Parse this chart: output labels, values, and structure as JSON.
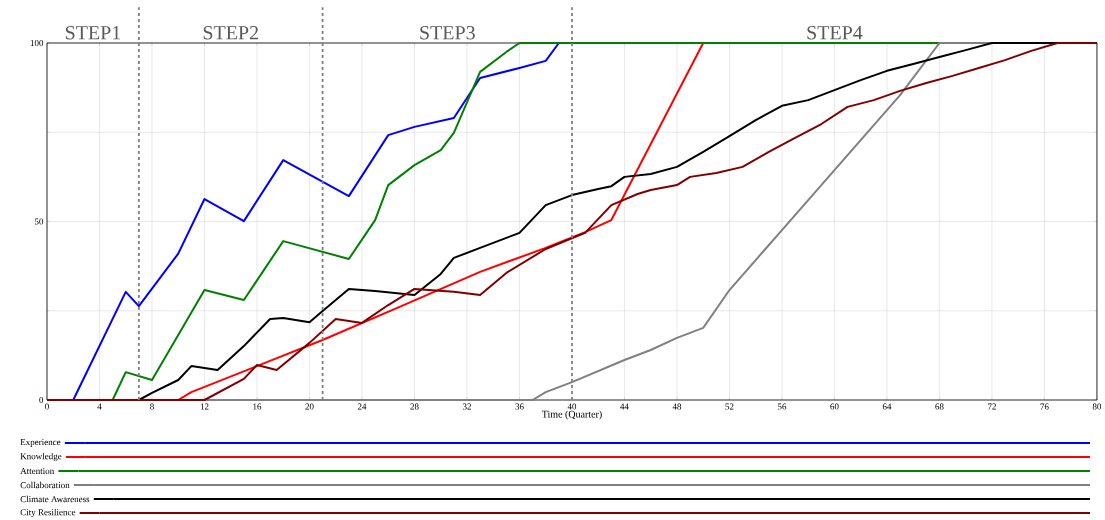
{
  "chart_data": {
    "type": "line",
    "xlabel": "Time (Quarter)",
    "xlim": [
      0,
      80
    ],
    "xticks": [
      0,
      4,
      8,
      12,
      16,
      20,
      24,
      28,
      32,
      36,
      40,
      44,
      48,
      52,
      56,
      60,
      64,
      68,
      72,
      76,
      80
    ],
    "ylim": [
      0,
      100
    ],
    "yticks": [
      0,
      {
        "value": 25,
        "label": null
      },
      50,
      {
        "value": 75,
        "label": null
      },
      100
    ],
    "grid": true,
    "legend": "bottom",
    "marker": "none",
    "line_style": "solid",
    "ref_lines": [
      {
        "axis": "x",
        "value": 7,
        "color": "#808080",
        "line_style": "dashed"
      },
      {
        "axis": "x",
        "value": 21,
        "color": "#808080",
        "line_style": "dashed"
      },
      {
        "axis": "x",
        "value": 40,
        "color": "#808080",
        "line_style": "dashed"
      }
    ],
    "annotations": [
      "STEP1",
      "STEP2",
      "STEP3",
      "STEP4"
    ],
    "series": [
      {
        "name": "Experience",
        "color": "#0000ff",
        "x": [
          0,
          2,
          6,
          7,
          10,
          12,
          15,
          18,
          23,
          26,
          28,
          31,
          33,
          36,
          38,
          39,
          80
        ],
        "values": [
          0,
          0,
          30.3,
          26.3,
          41,
          56.3,
          50.1,
          67.2,
          57.1,
          74.2,
          76.5,
          79,
          90.2,
          93,
          95,
          100,
          100
        ]
      },
      {
        "name": "Knowledge",
        "color": "#ff0000",
        "x": [
          0,
          10,
          11,
          21,
          27,
          33,
          38,
          41,
          43,
          50,
          80
        ],
        "values": [
          0,
          0,
          2.2,
          16.8,
          26.3,
          35.9,
          42.6,
          47,
          50.4,
          100,
          100
        ]
      },
      {
        "name": "Attention",
        "color": "#008000",
        "x": [
          0,
          5,
          6,
          8,
          12,
          15,
          18,
          23,
          25,
          26,
          28,
          30,
          31,
          33,
          35,
          36,
          80
        ],
        "values": [
          0,
          0,
          7.8,
          5.6,
          30.8,
          28,
          44.5,
          39.5,
          50.4,
          60.2,
          65.8,
          70,
          74.8,
          91.9,
          97.5,
          100,
          100
        ]
      },
      {
        "name": "Collaboration",
        "color": "#808080",
        "x": [
          0,
          37,
          38,
          40,
          44,
          46,
          48,
          50,
          52,
          56,
          58,
          62,
          65,
          68,
          80
        ],
        "values": [
          0,
          0,
          2.2,
          5,
          11.2,
          14,
          17.4,
          20.2,
          30.8,
          47.6,
          56,
          72.8,
          85.4,
          100,
          100
        ]
      },
      {
        "name": "Climate Awareness",
        "color": "#000000",
        "x": [
          0,
          7,
          8,
          10,
          11,
          13,
          15,
          17,
          18,
          20,
          21,
          23,
          25,
          28,
          30,
          31,
          33,
          36,
          38,
          40,
          42,
          43,
          44,
          46,
          48,
          50,
          52,
          54,
          56,
          58,
          60,
          62,
          64,
          66,
          68,
          70,
          72,
          80
        ],
        "values": [
          0,
          0,
          2,
          5.6,
          9.5,
          8.4,
          15.1,
          22.7,
          23,
          21.8,
          24.9,
          31.1,
          30.5,
          29.4,
          35.3,
          39.8,
          42.6,
          46.8,
          54.6,
          57.4,
          59.1,
          59.9,
          62.5,
          63.3,
          65.3,
          69.5,
          73.9,
          78.4,
          82.4,
          84,
          86.8,
          89.6,
          92.2,
          94.1,
          96.1,
          98,
          100,
          100
        ]
      },
      {
        "name": "City Resilience",
        "color": "#800000",
        "x": [
          0,
          12,
          15,
          16,
          17.5,
          20,
          22,
          24,
          26,
          28,
          31,
          33,
          35,
          38,
          41,
          43,
          45,
          46,
          48,
          49,
          51,
          53,
          55,
          57,
          59,
          61,
          63,
          65,
          67,
          69,
          71,
          73,
          75,
          77,
          80
        ],
        "values": [
          0,
          0,
          5.9,
          9.8,
          8.4,
          16,
          22.7,
          21.6,
          26.6,
          31.1,
          30.3,
          29.4,
          35.6,
          42.3,
          46.8,
          54.6,
          57.7,
          58.8,
          60.2,
          62.5,
          63.6,
          65.3,
          69.5,
          73.4,
          77.3,
          82.1,
          84,
          86.6,
          88.8,
          90.8,
          93,
          95.2,
          97.8,
          100,
          100
        ]
      }
    ]
  }
}
